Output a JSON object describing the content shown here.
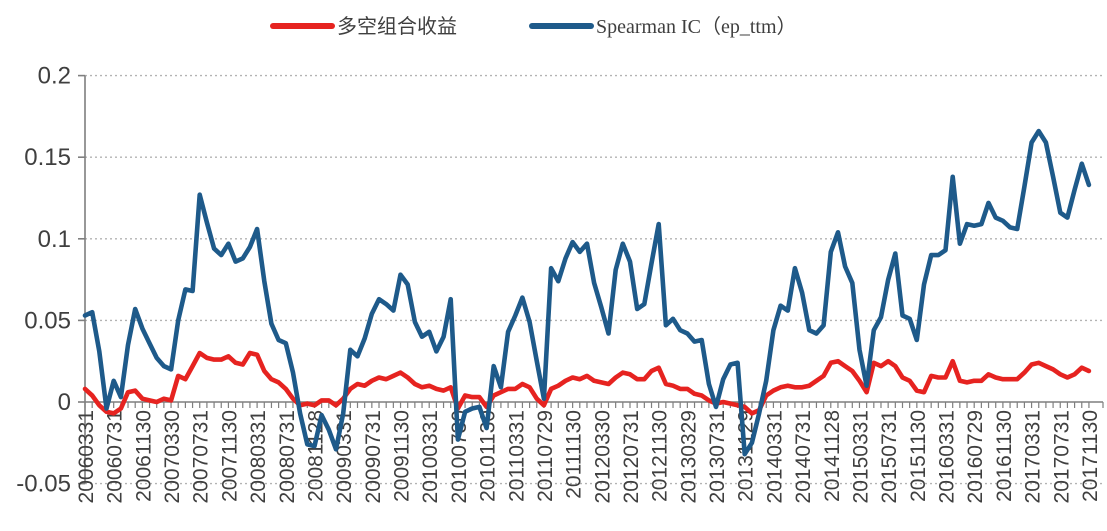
{
  "page": {
    "background": "#ffffff"
  },
  "legend": {
    "position": "top",
    "items": [
      {
        "label": "多空组合收益",
        "color": "#e62320"
      },
      {
        "label": "Spearman IC（ep_ttm）",
        "color": "#1e5a8a"
      }
    ]
  },
  "chart_data": {
    "type": "line",
    "title": "",
    "xlabel": "",
    "ylabel": "",
    "x_tick_labels": [
      "20060331",
      "20060731",
      "20061130",
      "20070330",
      "20070731",
      "20071130",
      "20080331",
      "20080731",
      "20081128",
      "20090331",
      "20090731",
      "20091130",
      "20100331",
      "20100730",
      "20101130",
      "20110331",
      "20110729",
      "20111130",
      "20120330",
      "20120731",
      "20121130",
      "20130329",
      "20130731",
      "20131129",
      "20140331",
      "20140731",
      "20141128",
      "20150331",
      "20150731",
      "20151130",
      "20160331",
      "20160729",
      "20161130",
      "20170331",
      "20170731",
      "20171130"
    ],
    "points_per_label": 4,
    "y_ticks": [
      0.2,
      0.15,
      0.1,
      0.05,
      0,
      -0.05
    ],
    "ylim": [
      -0.05,
      0.2
    ],
    "grid": {
      "horizontal": true,
      "style": "dotted",
      "color": "#b3b3b3"
    },
    "axis_color": "#7f7f7f",
    "legend_position": "top",
    "series": [
      {
        "name": "多空组合收益",
        "color": "#e62320",
        "values": [
          0.008,
          0.004,
          -0.002,
          -0.006,
          -0.007,
          -0.004,
          0.006,
          0.007,
          0.002,
          0.001,
          0.0,
          0.002,
          0.001,
          0.016,
          0.014,
          0.022,
          0.03,
          0.027,
          0.026,
          0.026,
          0.028,
          0.024,
          0.023,
          0.03,
          0.029,
          0.019,
          0.014,
          0.012,
          0.008,
          0.002,
          -0.002,
          -0.001,
          -0.002,
          0.001,
          0.001,
          -0.002,
          0.002,
          0.008,
          0.011,
          0.01,
          0.013,
          0.015,
          0.014,
          0.016,
          0.018,
          0.015,
          0.011,
          0.009,
          0.01,
          0.008,
          0.007,
          0.009,
          -0.004,
          0.004,
          0.003,
          0.003,
          -0.003,
          0.004,
          0.006,
          0.008,
          0.008,
          0.011,
          0.009,
          0.002,
          -0.002,
          0.008,
          0.01,
          0.013,
          0.015,
          0.014,
          0.016,
          0.013,
          0.012,
          0.011,
          0.015,
          0.018,
          0.017,
          0.014,
          0.014,
          0.019,
          0.021,
          0.011,
          0.01,
          0.008,
          0.008,
          0.005,
          0.004,
          0.001,
          -0.001,
          0.0,
          -0.001,
          -0.002,
          -0.003,
          -0.007,
          -0.005,
          0.004,
          0.007,
          0.009,
          0.01,
          0.009,
          0.009,
          0.01,
          0.013,
          0.016,
          0.024,
          0.025,
          0.022,
          0.019,
          0.013,
          0.006,
          0.024,
          0.022,
          0.025,
          0.022,
          0.015,
          0.013,
          0.007,
          0.006,
          0.016,
          0.015,
          0.015,
          0.025,
          0.013,
          0.012,
          0.013,
          0.013,
          0.017,
          0.015,
          0.014,
          0.014,
          0.014,
          0.018,
          0.023,
          0.024,
          0.022,
          0.02,
          0.017,
          0.015,
          0.017,
          0.021,
          0.019
        ]
      },
      {
        "name": "Spearman IC（ep_ttm）",
        "color": "#1e5a8a",
        "values": [
          0.053,
          0.055,
          0.031,
          -0.004,
          0.013,
          0.003,
          0.035,
          0.057,
          0.045,
          0.036,
          0.027,
          0.022,
          0.02,
          0.05,
          0.069,
          0.068,
          0.127,
          0.11,
          0.094,
          0.09,
          0.097,
          0.086,
          0.088,
          0.095,
          0.106,
          0.074,
          0.048,
          0.038,
          0.036,
          0.018,
          -0.007,
          -0.026,
          -0.027,
          -0.008,
          -0.017,
          -0.029,
          -0.007,
          0.032,
          0.028,
          0.039,
          0.054,
          0.063,
          0.06,
          0.056,
          0.078,
          0.072,
          0.049,
          0.04,
          0.043,
          0.031,
          0.04,
          0.063,
          -0.023,
          -0.006,
          -0.004,
          -0.003,
          -0.016,
          0.022,
          0.009,
          0.043,
          0.053,
          0.064,
          0.049,
          0.025,
          0.002,
          0.082,
          0.074,
          0.088,
          0.098,
          0.092,
          0.097,
          0.073,
          0.058,
          0.042,
          0.081,
          0.097,
          0.086,
          0.057,
          0.06,
          0.085,
          0.109,
          0.047,
          0.051,
          0.044,
          0.042,
          0.037,
          0.038,
          0.011,
          -0.003,
          0.014,
          0.023,
          0.024,
          -0.032,
          -0.025,
          -0.007,
          0.013,
          0.044,
          0.059,
          0.056,
          0.082,
          0.067,
          0.044,
          0.042,
          0.047,
          0.092,
          0.104,
          0.083,
          0.073,
          0.032,
          0.01,
          0.044,
          0.052,
          0.075,
          0.091,
          0.053,
          0.051,
          0.038,
          0.072,
          0.09,
          0.09,
          0.093,
          0.138,
          0.097,
          0.109,
          0.108,
          0.109,
          0.122,
          0.113,
          0.111,
          0.107,
          0.106,
          0.132,
          0.159,
          0.166,
          0.159,
          0.138,
          0.116,
          0.113,
          0.13,
          0.146,
          0.133
        ]
      }
    ]
  }
}
